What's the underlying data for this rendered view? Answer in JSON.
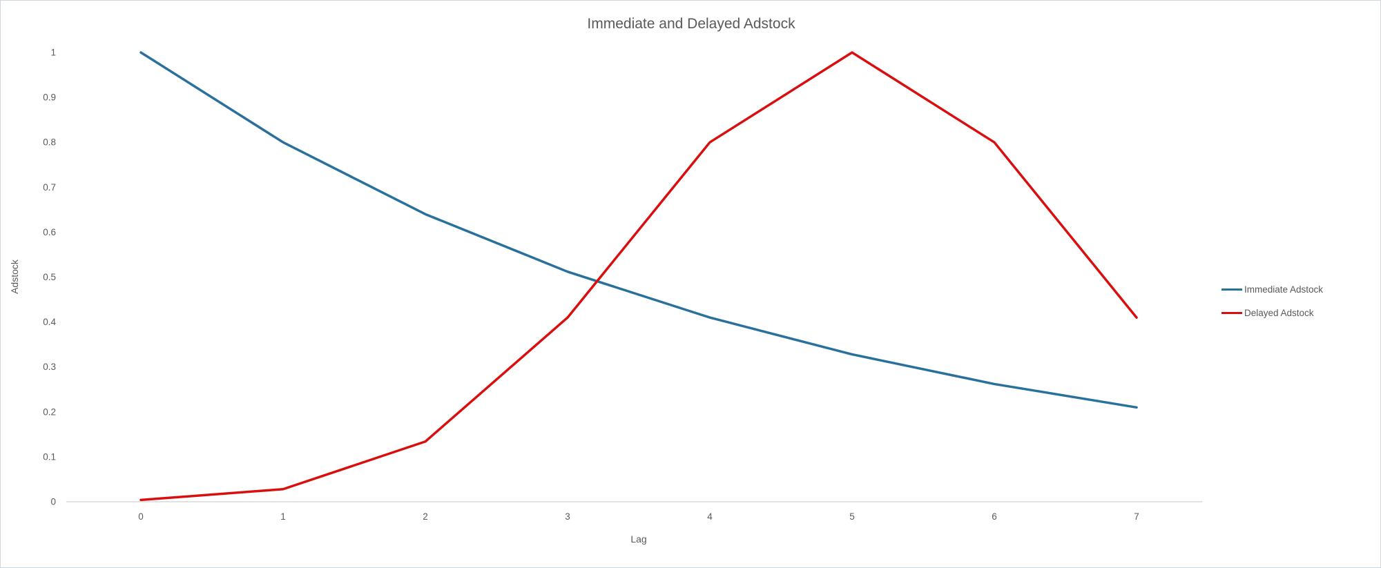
{
  "page": {
    "background_color": "#ffffff",
    "border_color": "#ccd6df",
    "text_color": "#595959",
    "axis_color": "#d9d9d9"
  },
  "chart_data": {
    "type": "line",
    "title": "Immediate and Delayed Adstock",
    "xlabel": "Lag",
    "ylabel": "Adstock",
    "x": [
      0,
      1,
      2,
      3,
      4,
      5,
      6,
      7
    ],
    "x_tick_labels": [
      "0",
      "1",
      "2",
      "3",
      "4",
      "5",
      "6",
      "7"
    ],
    "y_ticks": [
      0,
      0.1,
      0.2,
      0.3,
      0.4,
      0.5,
      0.6,
      0.7,
      0.8,
      0.9,
      1
    ],
    "y_tick_labels": [
      "0",
      "0.1",
      "0.2",
      "0.3",
      "0.4",
      "0.5",
      "0.6",
      "0.7",
      "0.8",
      "0.9",
      "1"
    ],
    "ylim": [
      0,
      1
    ],
    "grid": false,
    "legend_position": "right",
    "series": [
      {
        "name": "Immediate Adstock",
        "color": "#29719c",
        "values": [
          1.0,
          0.8,
          0.64,
          0.512,
          0.41,
          0.328,
          0.262,
          0.21
        ]
      },
      {
        "name": "Delayed Adstock",
        "color": "#d90f0f",
        "values": [
          0.004,
          0.028,
          0.134,
          0.41,
          0.8,
          1.0,
          0.8,
          0.41
        ]
      }
    ]
  }
}
